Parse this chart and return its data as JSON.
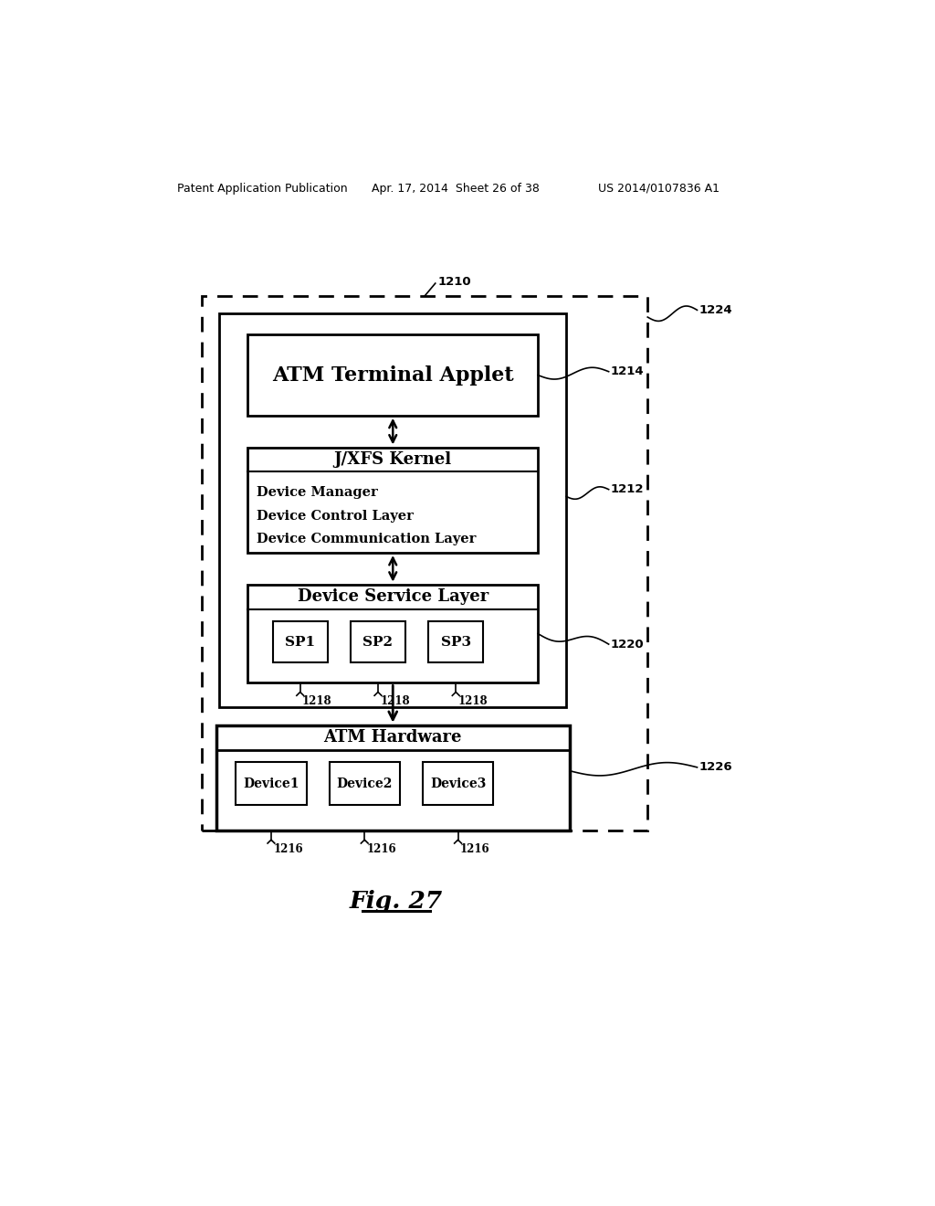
{
  "bg_color": "#ffffff",
  "header_left": "Patent Application Publication",
  "header_mid": "Apr. 17, 2014  Sheet 26 of 38",
  "header_right": "US 2014/0107836 A1",
  "fig_label": "Fig. 27",
  "label_1210": "1210",
  "label_1224": "1224",
  "label_1214": "1214",
  "label_1212": "1212",
  "label_1220": "1220",
  "label_1226": "1226",
  "label_1218": "1218",
  "label_1216": "1216",
  "atm_terminal_text": "ATM Terminal Applet",
  "jxfs_title": "J/XFS Kernel",
  "jxfs_line1": "Device Manager",
  "jxfs_line2": "Device Control Layer",
  "jxfs_line3": "Device Communication Layer",
  "dsl_title": "Device Service Layer",
  "sp1": "SP1",
  "sp2": "SP2",
  "sp3": "SP3",
  "hw_title": "ATM Hardware",
  "dev1": "Device1",
  "dev2": "Device2",
  "dev3": "Device3"
}
